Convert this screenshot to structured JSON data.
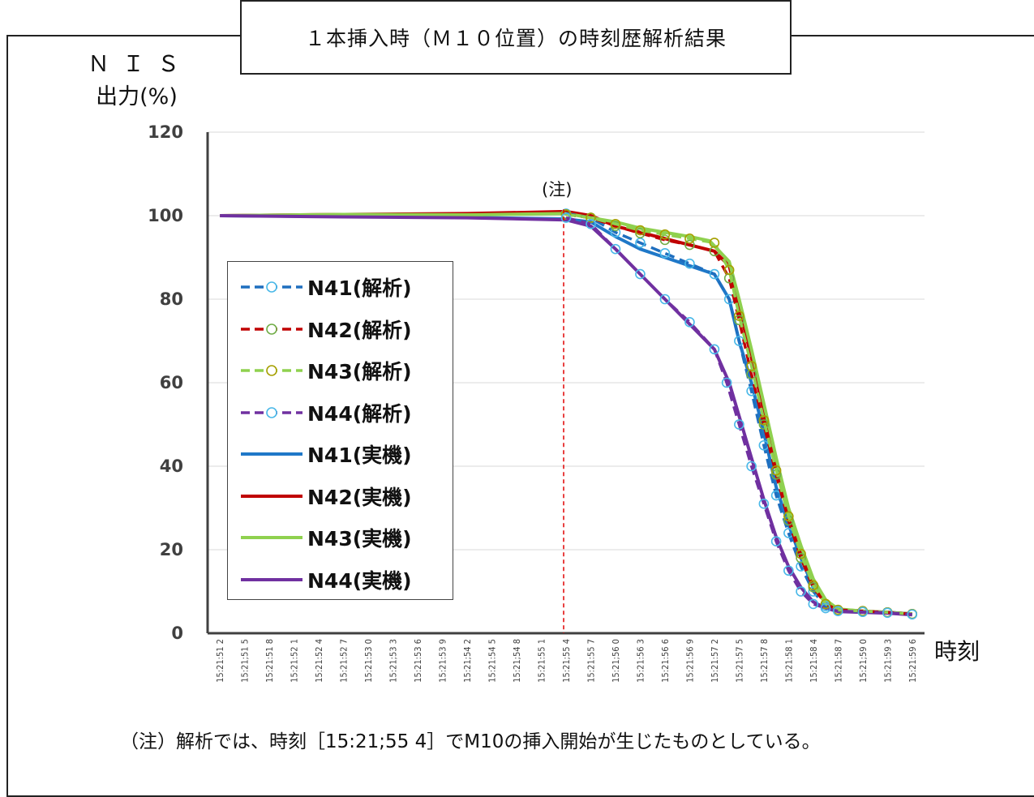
{
  "title": "１本挿入時（Ｍ１０位置）の時刻歴解析結果",
  "ylabel_line1": "ＮＩＳ",
  "ylabel_line2": "出力(%)",
  "xlabel": "時刻",
  "note_mark": "(注)",
  "footnote": "（注）解析では、時刻［15:21;55 4］でM10の挿入開始が生じたものとしている。",
  "chart_data": {
    "type": "line",
    "ylim": [
      0,
      120
    ],
    "yticks": [
      0,
      20,
      40,
      60,
      80,
      100,
      120
    ],
    "x_categories": [
      "15:21:51 2",
      "15:21:51 5",
      "15:21:51 8",
      "15:21:52 1",
      "15:21:52 4",
      "15:21:52 7",
      "15:21:53 0",
      "15:21:53 3",
      "15:21:53 6",
      "15:21:53 9",
      "15:21:54 2",
      "15:21:54 5",
      "15:21:54 8",
      "15:21:55 1",
      "15:21:55 4",
      "15:21:55 7",
      "15:21:56 0",
      "15:21:56 3",
      "15:21:56 6",
      "15:21:56 9",
      "15:21:57 2",
      "15:21:57 5",
      "15:21:57 8",
      "15:21:58 1",
      "15:21:58 4",
      "15:21:58 7",
      "15:21:59 0",
      "15:21:59 3",
      "15:21:59 6"
    ],
    "x_tick_labels": [
      "15:21:51 2",
      "15:21;51 5",
      "15:21:51 8",
      "15:21:52 1",
      "15:21:52 4",
      "15:21:52 7",
      "15:21:53 0",
      "15:21;53 3",
      "15:21:53 6",
      "15:21:53 9",
      "15:21;54 2",
      "15:21:54 5",
      "15:21;54 8",
      "15:21:55 1",
      "15:21;55 4",
      "15:21:55 7",
      "15:21;56 0",
      "15:21:56 3",
      "15:21:56 6",
      "15:21:56 9",
      "15:21:57 2",
      "15:21:57 5",
      "15:21:57 8",
      "15:21:58 1",
      "15:21:58 4",
      "15:21:58 7",
      "15:21;59 0",
      "15:21:59 3",
      "15:21:59 6"
    ],
    "insertion_marker_x": 14,
    "grid": true,
    "legend_position": "left-center",
    "series": [
      {
        "name": "N41(解析)",
        "color": "#1f6fbf",
        "marker_color": "#49b8e8",
        "style": "dashed",
        "markers": true,
        "points": [
          [
            14,
            100.5
          ],
          [
            15,
            99.5
          ],
          [
            16,
            96
          ],
          [
            17,
            93.5
          ],
          [
            18,
            91
          ],
          [
            19,
            88.5
          ],
          [
            20,
            86
          ],
          [
            20.6,
            80
          ],
          [
            21,
            70
          ],
          [
            21.5,
            58
          ],
          [
            22,
            45
          ],
          [
            22.5,
            33
          ],
          [
            23,
            24
          ],
          [
            23.5,
            16
          ],
          [
            24,
            10
          ],
          [
            24.5,
            6.5
          ],
          [
            25,
            5.5
          ],
          [
            26,
            5.2
          ],
          [
            27,
            5.0
          ],
          [
            28,
            4.6
          ]
        ]
      },
      {
        "name": "N42(解析)",
        "color": "#c00000",
        "marker_color": "#70ad47",
        "style": "dashed",
        "markers": true,
        "points": [
          [
            14,
            100.3
          ],
          [
            15,
            99.5
          ],
          [
            16,
            97.5
          ],
          [
            17,
            95.8
          ],
          [
            18,
            94.2
          ],
          [
            19,
            93
          ],
          [
            20,
            91.5
          ],
          [
            20.6,
            85
          ],
          [
            21,
            75
          ],
          [
            21.5,
            62
          ],
          [
            22,
            50
          ],
          [
            22.5,
            38
          ],
          [
            23,
            27
          ],
          [
            23.5,
            18
          ],
          [
            24,
            11
          ],
          [
            24.5,
            7
          ],
          [
            25,
            5.6
          ],
          [
            26,
            5.3
          ],
          [
            27,
            5.0
          ],
          [
            28,
            4.6
          ]
        ]
      },
      {
        "name": "N43(解析)",
        "color": "#8fd14f",
        "marker_color": "#a6a000",
        "style": "dashed",
        "markers": true,
        "points": [
          [
            14,
            100.3
          ],
          [
            15,
            99.5
          ],
          [
            16,
            98
          ],
          [
            17,
            96.5
          ],
          [
            18,
            95.5
          ],
          [
            19,
            94.5
          ],
          [
            20,
            93.5
          ],
          [
            20.6,
            87
          ],
          [
            21,
            76
          ],
          [
            21.5,
            64
          ],
          [
            22,
            51
          ],
          [
            22.5,
            39
          ],
          [
            23,
            28
          ],
          [
            23.5,
            19
          ],
          [
            24,
            11.5
          ],
          [
            24.5,
            7
          ],
          [
            25,
            5.6
          ],
          [
            26,
            5.3
          ],
          [
            27,
            5.0
          ],
          [
            28,
            4.6
          ]
        ]
      },
      {
        "name": "N44(解析)",
        "color": "#7030a0",
        "marker_color": "#49b8e8",
        "style": "dashed",
        "markers": true,
        "points": [
          [
            14,
            99.5
          ],
          [
            15,
            98
          ],
          [
            16,
            92
          ],
          [
            17,
            86
          ],
          [
            18,
            80
          ],
          [
            19,
            74.5
          ],
          [
            20,
            68
          ],
          [
            20.5,
            60
          ],
          [
            21,
            50
          ],
          [
            21.5,
            40
          ],
          [
            22,
            31
          ],
          [
            22.5,
            22
          ],
          [
            23,
            15
          ],
          [
            23.5,
            10
          ],
          [
            24,
            7
          ],
          [
            24.5,
            6
          ],
          [
            25,
            5.3
          ],
          [
            26,
            5.1
          ],
          [
            27,
            4.9
          ],
          [
            28,
            4.5
          ]
        ]
      },
      {
        "name": "N41(実機)",
        "color": "#1f78c8",
        "style": "solid",
        "markers": false,
        "points": [
          [
            0,
            100
          ],
          [
            5,
            99.8
          ],
          [
            10,
            99.6
          ],
          [
            14,
            99.2
          ],
          [
            15,
            98.5
          ],
          [
            16,
            95
          ],
          [
            17,
            92
          ],
          [
            18,
            90
          ],
          [
            19,
            88
          ],
          [
            20,
            86
          ],
          [
            20.6,
            80
          ],
          [
            21,
            70
          ],
          [
            21.5,
            60
          ],
          [
            22,
            48
          ],
          [
            22.5,
            35
          ],
          [
            23,
            26
          ],
          [
            23.5,
            18
          ],
          [
            24,
            11
          ],
          [
            24.5,
            7.5
          ],
          [
            25,
            5.6
          ],
          [
            26,
            5.2
          ],
          [
            27,
            5.0
          ],
          [
            28,
            4.6
          ]
        ]
      },
      {
        "name": "N42(実機)",
        "color": "#c00000",
        "style": "solid",
        "markers": false,
        "points": [
          [
            0,
            100
          ],
          [
            5,
            100.3
          ],
          [
            10,
            100.5
          ],
          [
            14,
            101
          ],
          [
            15,
            100
          ],
          [
            16,
            97.5
          ],
          [
            17,
            96
          ],
          [
            18,
            94.5
          ],
          [
            19,
            93
          ],
          [
            20,
            91.5
          ],
          [
            20.6,
            88
          ],
          [
            21,
            78
          ],
          [
            21.5,
            66
          ],
          [
            22,
            53
          ],
          [
            22.5,
            40
          ],
          [
            23,
            29
          ],
          [
            23.5,
            19.5
          ],
          [
            24,
            12
          ],
          [
            24.5,
            7.5
          ],
          [
            25,
            5.7
          ],
          [
            26,
            5.3
          ],
          [
            27,
            5.0
          ],
          [
            28,
            4.6
          ]
        ]
      },
      {
        "name": "N43(実機)",
        "color": "#8fd14f",
        "style": "solid",
        "markers": false,
        "points": [
          [
            0,
            100
          ],
          [
            5,
            100.3
          ],
          [
            10,
            100.2
          ],
          [
            14,
            100.5
          ],
          [
            15,
            99.5
          ],
          [
            16,
            98.5
          ],
          [
            17,
            97
          ],
          [
            18,
            96
          ],
          [
            19,
            95
          ],
          [
            19.8,
            94
          ],
          [
            20.6,
            89
          ],
          [
            21,
            80
          ],
          [
            21.5,
            68
          ],
          [
            22,
            55
          ],
          [
            22.5,
            42
          ],
          [
            23,
            30
          ],
          [
            23.5,
            21
          ],
          [
            24,
            13
          ],
          [
            24.5,
            8
          ],
          [
            25,
            5.8
          ],
          [
            26,
            5.3
          ],
          [
            27,
            5.0
          ],
          [
            28,
            4.6
          ]
        ]
      },
      {
        "name": "N44(実機)",
        "color": "#7030a0",
        "style": "solid",
        "markers": false,
        "points": [
          [
            0,
            100
          ],
          [
            5,
            99.7
          ],
          [
            10,
            99.5
          ],
          [
            14,
            99
          ],
          [
            15,
            97.5
          ],
          [
            16,
            92
          ],
          [
            17,
            86
          ],
          [
            18,
            80
          ],
          [
            19,
            74
          ],
          [
            20,
            68
          ],
          [
            20.6,
            60
          ],
          [
            21,
            52
          ],
          [
            21.5,
            42
          ],
          [
            22,
            32
          ],
          [
            22.5,
            23
          ],
          [
            23,
            16
          ],
          [
            23.5,
            11
          ],
          [
            24,
            7.5
          ],
          [
            24.5,
            6
          ],
          [
            25,
            5.2
          ],
          [
            26,
            5.0
          ],
          [
            27,
            4.8
          ],
          [
            28,
            4.4
          ]
        ]
      }
    ]
  }
}
